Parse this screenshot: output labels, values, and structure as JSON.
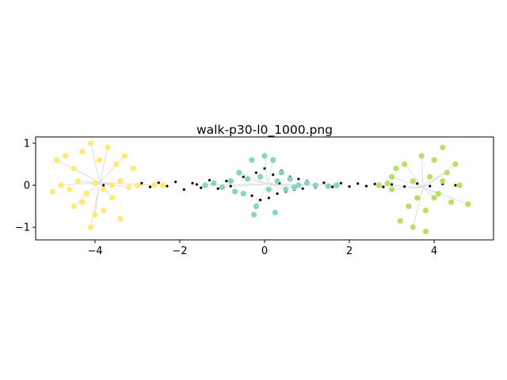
{
  "chart_data": {
    "type": "scatter",
    "title": "walk-p30-l0_1000.png",
    "xlabel": "",
    "ylabel": "",
    "xlim": [
      -5.4,
      5.4
    ],
    "ylim": [
      -1.3,
      1.15
    ],
    "xticks": [
      -4,
      -2,
      0,
      2,
      4
    ],
    "xtick_labels": [
      "−4",
      "−2",
      "0",
      "2",
      "4"
    ],
    "yticks": [
      -1,
      0,
      1
    ],
    "ytick_labels": [
      "−1",
      "0",
      "1"
    ],
    "grid": false,
    "legend": "none",
    "colors": {
      "background_points": "#000000",
      "cluster_left": "#ffeb6e",
      "cluster_center": "#88d4c4",
      "cluster_right": "#b8e068",
      "links": "#dddddd"
    },
    "series": [
      {
        "role": "background",
        "color": "#000000",
        "points": [
          [
            -3.8,
            0.0
          ],
          [
            -3.6,
            0.02
          ],
          [
            -3.2,
            -0.03
          ],
          [
            -2.9,
            0.05
          ],
          [
            -2.7,
            -0.04
          ],
          [
            -2.5,
            0.06
          ],
          [
            -2.3,
            -0.02
          ],
          [
            -2.1,
            0.08
          ],
          [
            -1.9,
            -0.1
          ],
          [
            -1.7,
            0.05
          ],
          [
            -1.5,
            -0.06
          ],
          [
            -1.3,
            0.12
          ],
          [
            -1.1,
            -0.08
          ],
          [
            -0.9,
            0.1
          ],
          [
            -0.7,
            -0.15
          ],
          [
            -0.5,
            0.2
          ],
          [
            -0.3,
            -0.25
          ],
          [
            -0.2,
            0.3
          ],
          [
            -0.1,
            -0.35
          ],
          [
            0.0,
            0.4
          ],
          [
            0.1,
            -0.3
          ],
          [
            0.2,
            0.25
          ],
          [
            0.3,
            -0.2
          ],
          [
            0.4,
            0.35
          ],
          [
            0.5,
            -0.15
          ],
          [
            0.6,
            0.2
          ],
          [
            0.7,
            -0.1
          ],
          [
            0.8,
            0.15
          ],
          [
            0.9,
            -0.08
          ],
          [
            1.0,
            0.1
          ],
          [
            1.2,
            -0.05
          ],
          [
            1.4,
            0.06
          ],
          [
            1.6,
            -0.04
          ],
          [
            1.8,
            0.05
          ],
          [
            2.0,
            -0.03
          ],
          [
            2.2,
            0.04
          ],
          [
            2.4,
            -0.02
          ],
          [
            2.6,
            0.03
          ],
          [
            2.8,
            -0.04
          ],
          [
            3.0,
            0.02
          ],
          [
            3.3,
            -0.03
          ],
          [
            3.6,
            0.04
          ],
          [
            3.9,
            -0.02
          ],
          [
            4.2,
            0.03
          ],
          [
            4.5,
            0.0
          ],
          [
            -1.6,
            0.02
          ],
          [
            -0.8,
            -0.02
          ],
          [
            0.35,
            0.05
          ],
          [
            1.5,
            0.01
          ],
          [
            -2.4,
            0.0
          ]
        ]
      },
      {
        "role": "cluster-left",
        "color": "#ffeb6e",
        "points": [
          [
            -4.9,
            0.6
          ],
          [
            -4.7,
            0.7
          ],
          [
            -4.5,
            0.4
          ],
          [
            -4.3,
            0.8
          ],
          [
            -4.1,
            1.0
          ],
          [
            -3.9,
            0.6
          ],
          [
            -3.7,
            0.9
          ],
          [
            -3.5,
            0.5
          ],
          [
            -3.3,
            0.7
          ],
          [
            -3.1,
            0.4
          ],
          [
            -4.8,
            0.0
          ],
          [
            -4.6,
            -0.1
          ],
          [
            -4.4,
            0.1
          ],
          [
            -4.2,
            -0.2
          ],
          [
            -4.0,
            0.05
          ],
          [
            -3.8,
            -0.1
          ],
          [
            -3.6,
            0.0
          ],
          [
            -3.4,
            0.1
          ],
          [
            -3.2,
            -0.05
          ],
          [
            -3.0,
            0.0
          ],
          [
            -4.5,
            -0.5
          ],
          [
            -4.3,
            -0.4
          ],
          [
            -4.0,
            -0.7
          ],
          [
            -3.8,
            -0.6
          ],
          [
            -3.6,
            -0.3
          ],
          [
            -3.4,
            -0.8
          ],
          [
            -4.1,
            -1.0
          ],
          [
            -5.0,
            -0.15
          ],
          [
            -2.6,
            0.0
          ],
          [
            -2.4,
            0.0
          ]
        ]
      },
      {
        "role": "cluster-center",
        "color": "#88d4c4",
        "points": [
          [
            -1.4,
            0.0
          ],
          [
            -1.2,
            0.05
          ],
          [
            -1.0,
            -0.05
          ],
          [
            -0.8,
            0.1
          ],
          [
            -0.6,
            0.3
          ],
          [
            -0.5,
            -0.2
          ],
          [
            -0.4,
            0.15
          ],
          [
            -0.3,
            0.6
          ],
          [
            -0.2,
            -0.5
          ],
          [
            -0.1,
            0.2
          ],
          [
            0.0,
            0.7
          ],
          [
            0.1,
            -0.1
          ],
          [
            0.2,
            0.6
          ],
          [
            0.25,
            -0.65
          ],
          [
            0.3,
            0.1
          ],
          [
            0.4,
            0.3
          ],
          [
            0.5,
            -0.1
          ],
          [
            0.6,
            0.15
          ],
          [
            0.8,
            0.0
          ],
          [
            1.0,
            0.05
          ],
          [
            1.2,
            0.0
          ],
          [
            1.5,
            -0.02
          ],
          [
            1.7,
            0.0
          ],
          [
            -0.7,
            -0.15
          ],
          [
            0.7,
            -0.05
          ],
          [
            -0.25,
            -0.7
          ]
        ]
      },
      {
        "role": "cluster-right",
        "color": "#b8e068",
        "points": [
          [
            2.7,
            0.0
          ],
          [
            2.9,
            0.05
          ],
          [
            3.0,
            -0.1
          ],
          [
            3.1,
            0.4
          ],
          [
            3.3,
            0.5
          ],
          [
            3.4,
            -0.5
          ],
          [
            3.5,
            0.1
          ],
          [
            3.6,
            -0.3
          ],
          [
            3.7,
            0.7
          ],
          [
            3.8,
            -1.1
          ],
          [
            3.9,
            0.2
          ],
          [
            4.0,
            0.6
          ],
          [
            4.1,
            -0.2
          ],
          [
            4.2,
            0.9
          ],
          [
            4.3,
            0.3
          ],
          [
            4.4,
            -0.4
          ],
          [
            4.5,
            0.5
          ],
          [
            4.6,
            0.0
          ],
          [
            4.8,
            -0.45
          ],
          [
            3.2,
            -0.85
          ],
          [
            3.5,
            -1.0
          ],
          [
            3.8,
            -0.6
          ],
          [
            4.0,
            -0.3
          ],
          [
            4.2,
            0.1
          ],
          [
            3.0,
            0.2
          ]
        ]
      }
    ]
  }
}
